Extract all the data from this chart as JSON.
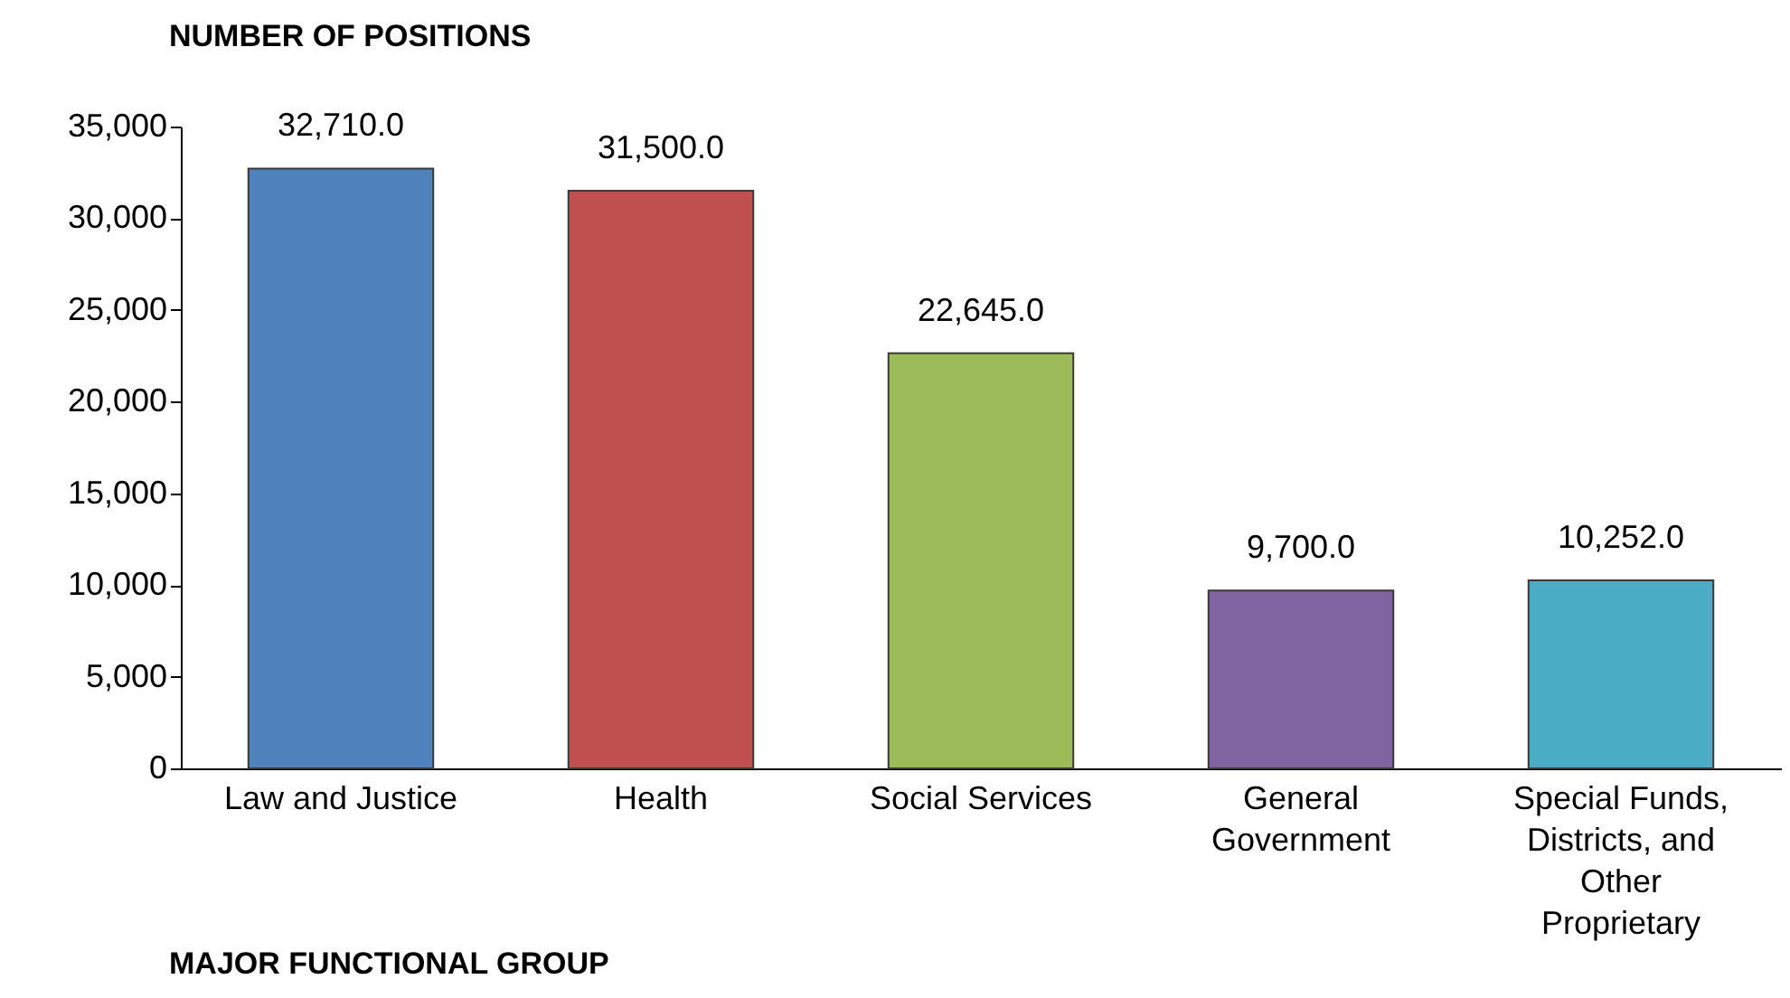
{
  "chart_data": {
    "type": "bar",
    "ylabel": "NUMBER OF POSITIONS",
    "xlabel": "MAJOR FUNCTIONAL GROUP",
    "categories": [
      "Law and Justice",
      "Health",
      "Social Services",
      "General Government",
      "Special Funds, Districts, and Other Proprietary"
    ],
    "values": [
      32710,
      31500,
      22645,
      9700,
      10252
    ],
    "colors": [
      "#4f81bd",
      "#c0504d",
      "#9bbb59",
      "#8064a2",
      "#4bacc6"
    ],
    "value_labels": [
      "32,710.0",
      "31,500.0",
      "22,645.0",
      "9,700.0",
      "10,252.0"
    ],
    "ylim": [
      0,
      35000
    ],
    "yticks": [
      {
        "value": 0,
        "label": "0"
      },
      {
        "value": 5000,
        "label": "5,000"
      },
      {
        "value": 10000,
        "label": "10,000"
      },
      {
        "value": 15000,
        "label": "15,000"
      },
      {
        "value": 20000,
        "label": "20,000"
      },
      {
        "value": 25000,
        "label": "25,000"
      },
      {
        "value": 30000,
        "label": "30,000"
      },
      {
        "value": 35000,
        "label": "35,000"
      }
    ],
    "grid": false,
    "legend": false
  }
}
